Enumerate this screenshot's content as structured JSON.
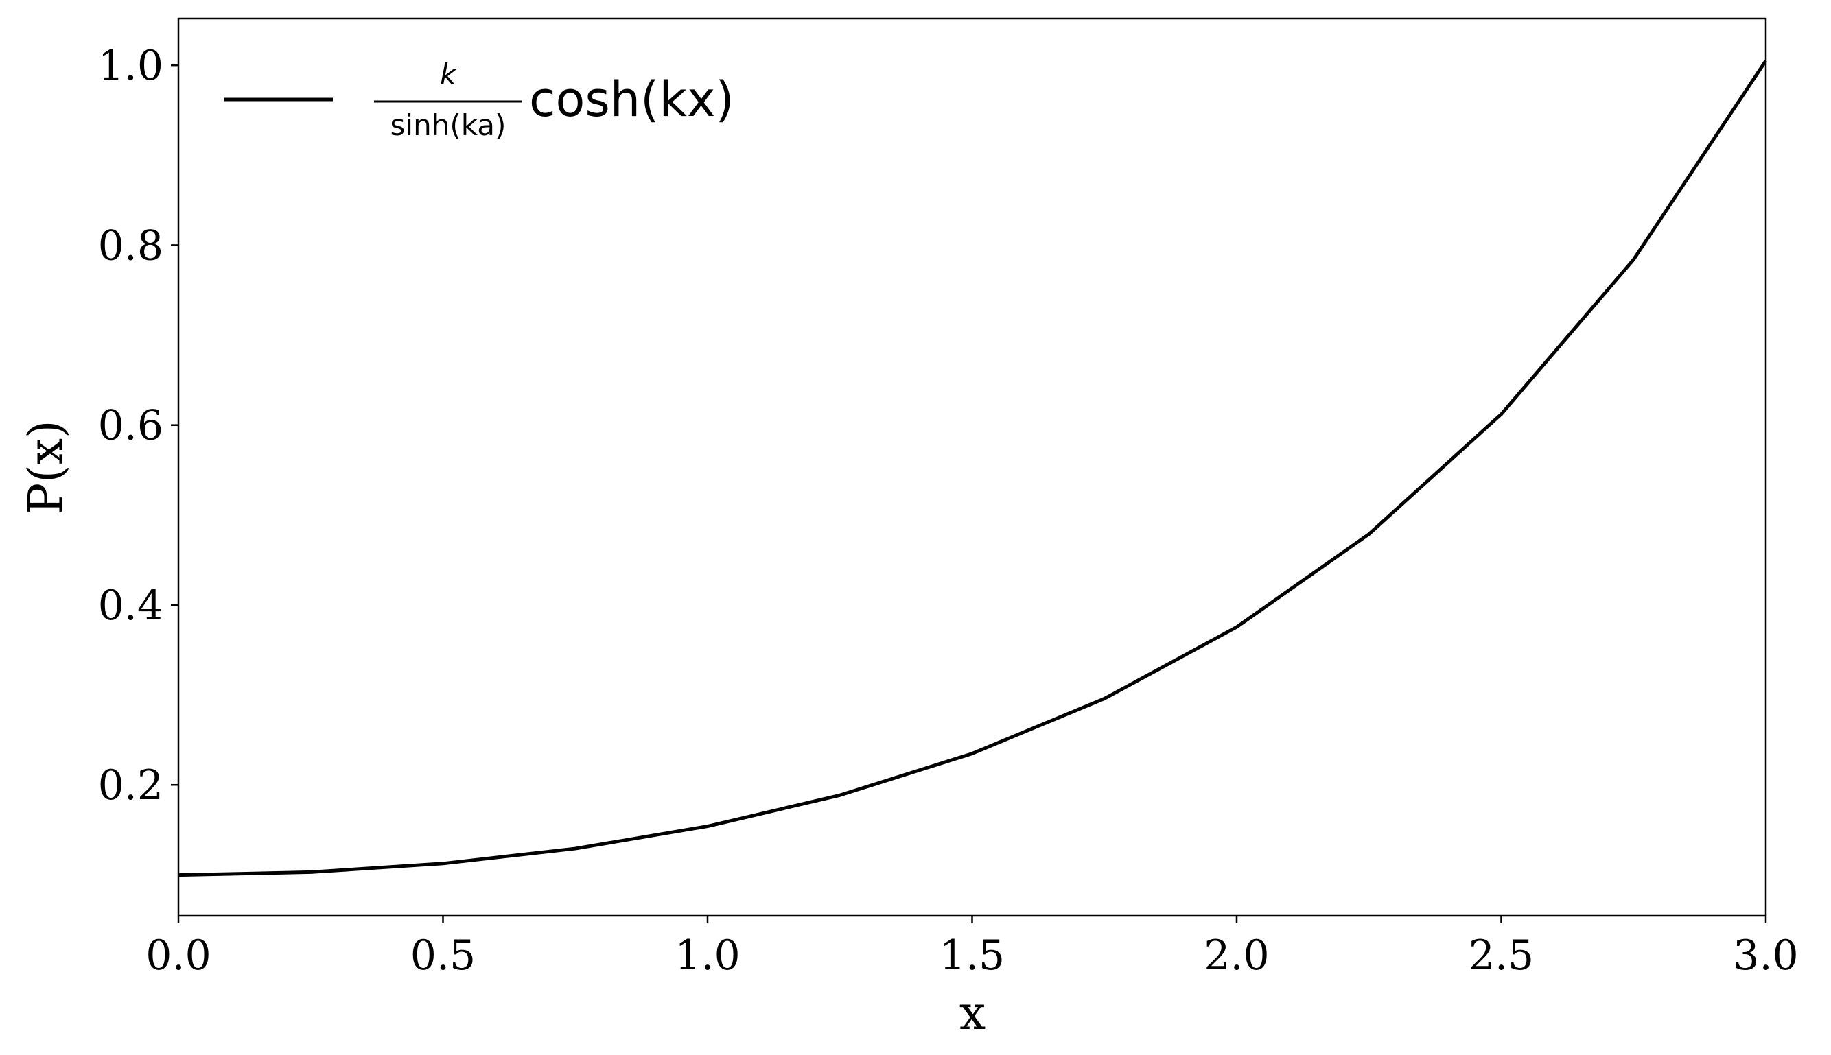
{
  "chart_data": {
    "type": "line",
    "x_label": "x",
    "y_label": "P(x)",
    "x": [
      0,
      0.25,
      0.5,
      0.75,
      1.0,
      1.25,
      1.5,
      1.75,
      2.0,
      2.25,
      2.5,
      2.75,
      3.0
    ],
    "series": [
      {
        "name": "cosh(kx)",
        "name_fraction": {
          "numerator": "k",
          "denominator": "sinh(ka)"
        },
        "color": "#000000",
        "values": [
          0.0998,
          0.103,
          0.1126,
          0.1292,
          0.154,
          0.1885,
          0.2348,
          0.2959,
          0.3755,
          0.4788,
          0.6121,
          0.7839,
          1.005
        ]
      }
    ],
    "xlim": [
      0,
      3
    ],
    "ylim": [
      0.0545,
      1.052
    ],
    "xticks": [
      {
        "value": 0,
        "label": "0.0"
      },
      0.5,
      {
        "value": 1,
        "label": "1.0"
      },
      1.5,
      {
        "value": 2,
        "label": "2.0"
      },
      2.5,
      {
        "value": 3,
        "label": "3.0"
      }
    ],
    "yticks": [
      0.2,
      0.4,
      0.6,
      0.8,
      {
        "value": 1,
        "label": "1.0"
      }
    ],
    "grid": false,
    "legend": "upper left"
  }
}
